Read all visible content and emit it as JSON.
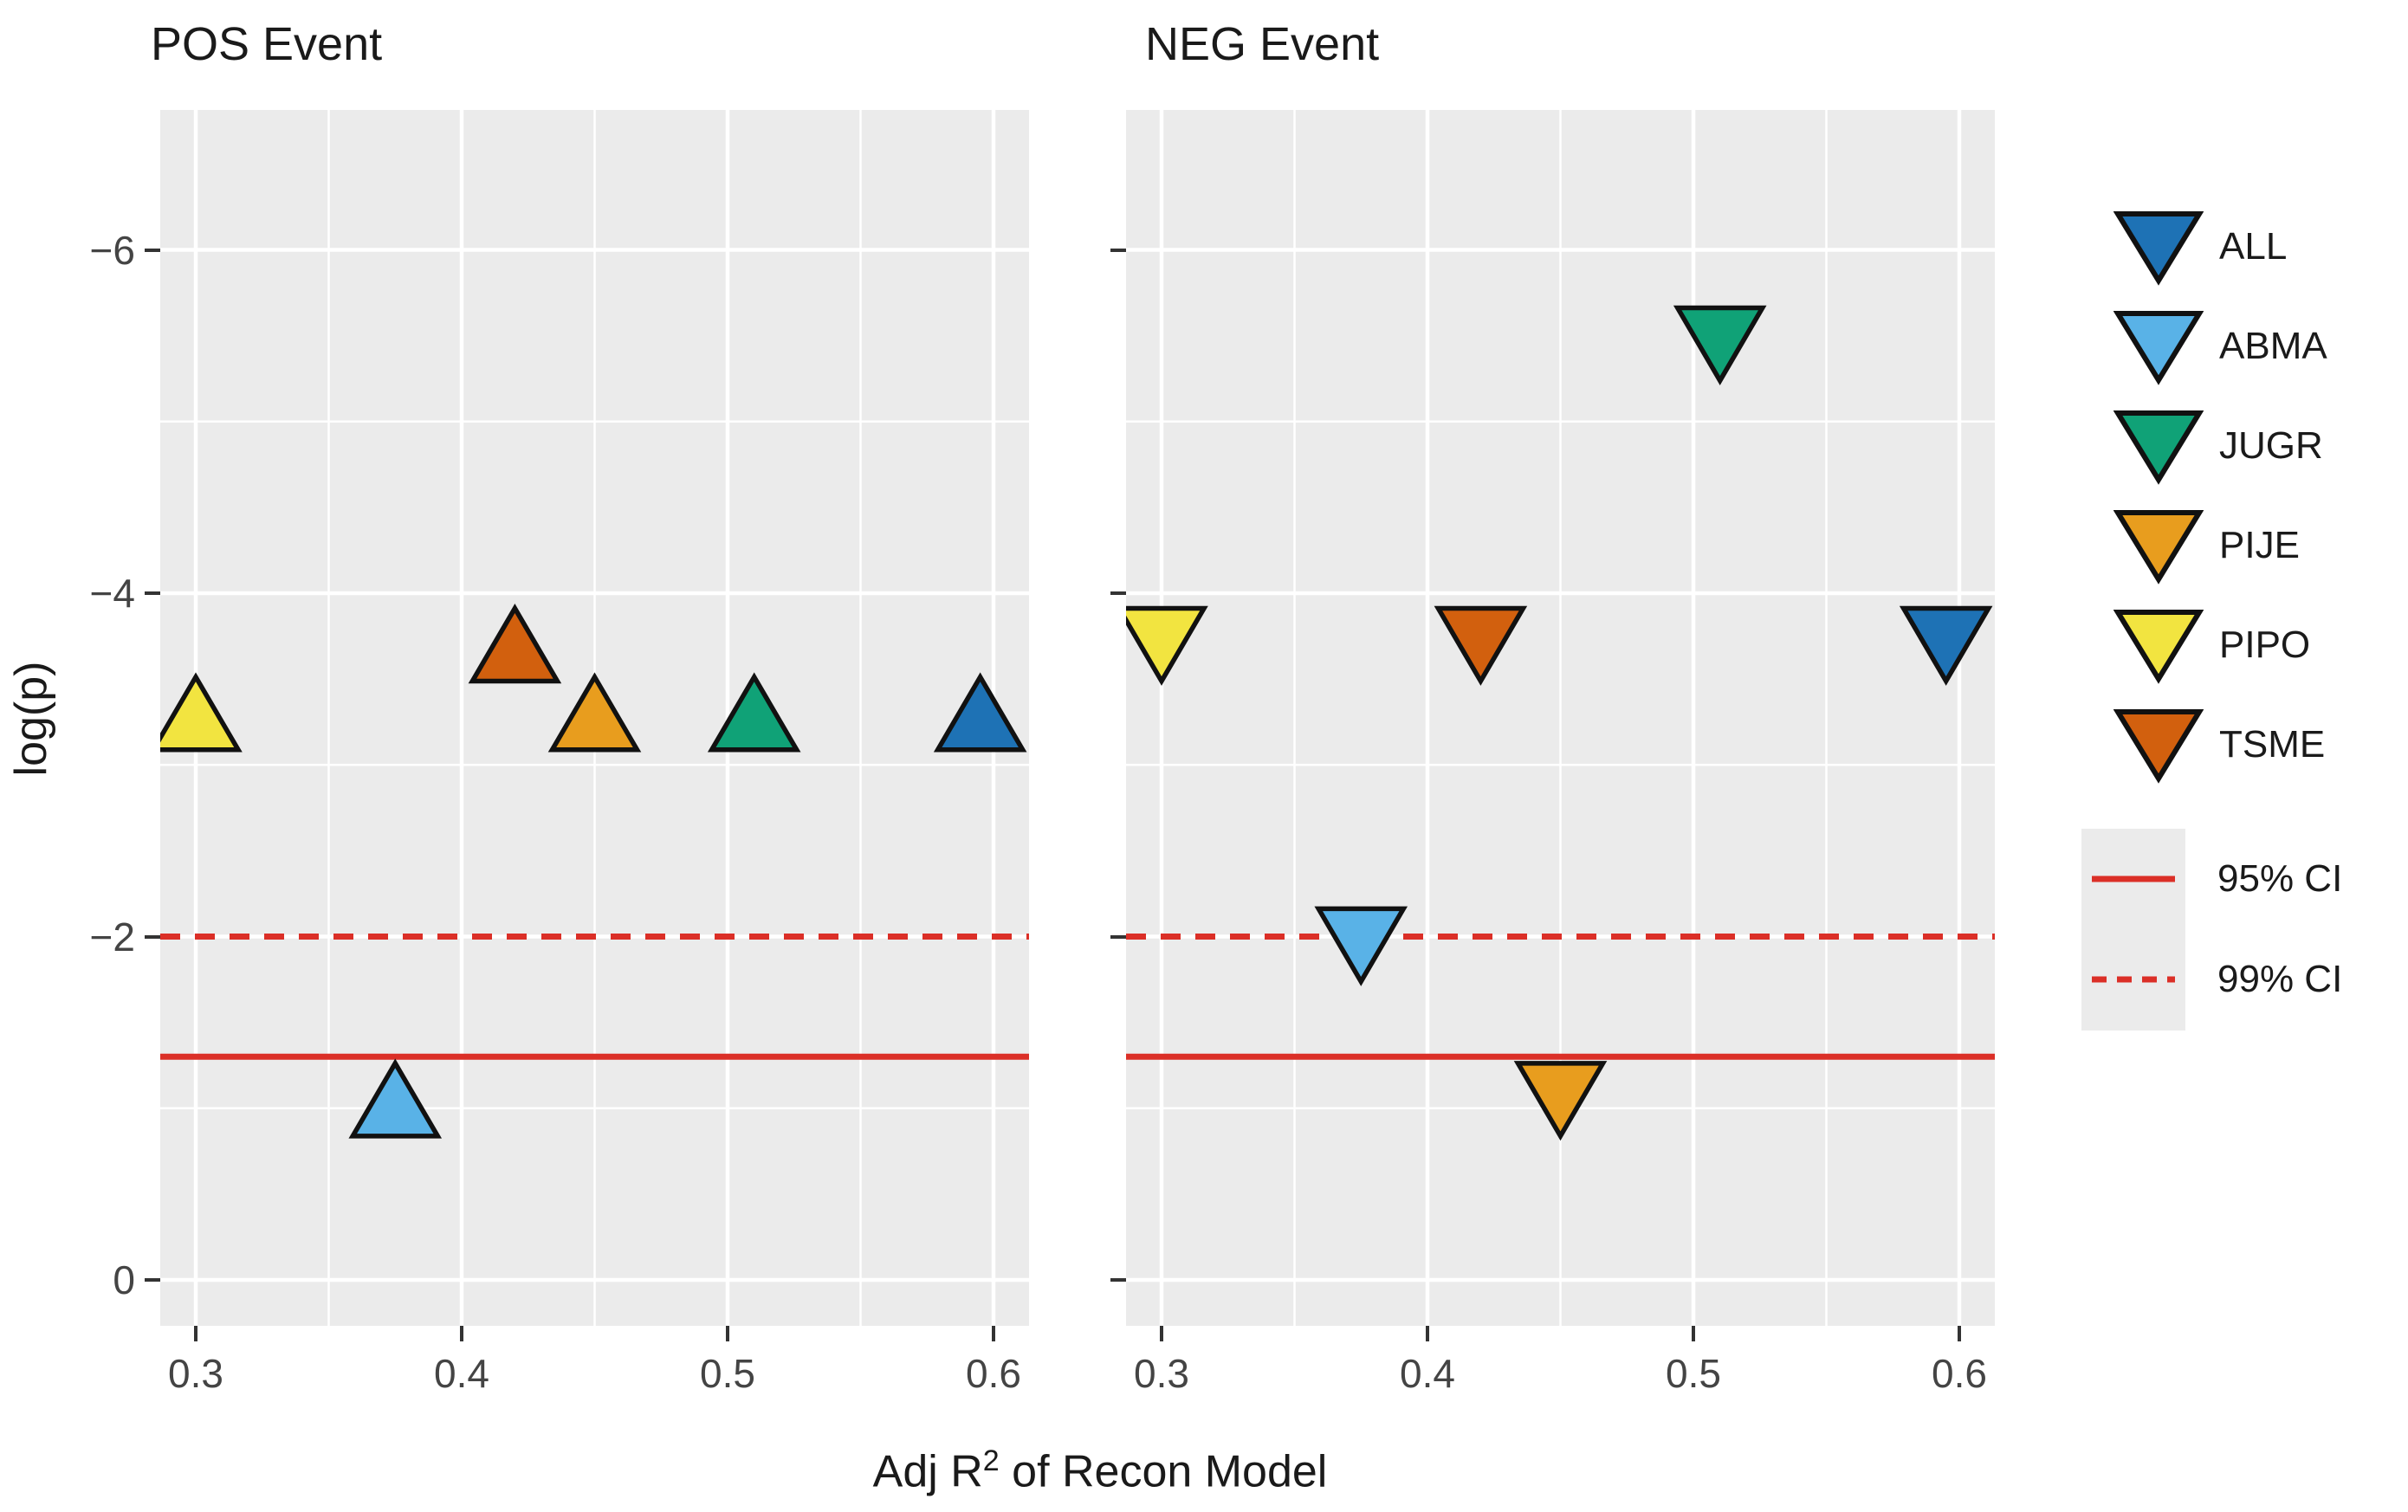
{
  "figure": {
    "panel_titles": {
      "pos": "POS Event",
      "neg": "NEG Event"
    },
    "ylabel": "log(p)",
    "xlabel": {
      "prefix": "Adj R",
      "sup": "2",
      "suffix": " of Recon Model",
      "full": "Adj R² of Recon Model"
    }
  },
  "axes": {
    "x_ticks": [
      {
        "value": 0.3,
        "label": "0.3"
      },
      {
        "value": 0.4,
        "label": "0.4"
      },
      {
        "value": 0.5,
        "label": "0.5"
      },
      {
        "value": 0.6,
        "label": "0.6"
      }
    ],
    "y_ticks": [
      {
        "value": 0,
        "label": "0"
      },
      {
        "value": -2,
        "label": "−2"
      },
      {
        "value": -4,
        "label": "−4"
      },
      {
        "value": -6,
        "label": "−6"
      }
    ],
    "x_minor": [
      0.35,
      0.45,
      0.55
    ],
    "y_minor": [
      -1,
      -3,
      -5
    ]
  },
  "colors": {
    "panel_background": "#EBEBEB",
    "gridline": "#FFFFFF",
    "marker_outline": "#111111",
    "ci_line": "#DB2F27",
    "text": "#1a1a1a",
    "tick_text": "#444444"
  },
  "legend": {
    "species": [
      {
        "code": "ALL",
        "color": "#1E72B5"
      },
      {
        "code": "ABMA",
        "color": "#59B2E7"
      },
      {
        "code": "JUGR",
        "color": "#10A277"
      },
      {
        "code": "PIJE",
        "color": "#E89D1E"
      },
      {
        "code": "PIPO",
        "color": "#F2E440"
      },
      {
        "code": "TSME",
        "color": "#D2600E"
      }
    ],
    "ci": [
      {
        "label": "95% CI",
        "style": "solid"
      },
      {
        "label": "99% CI",
        "style": "dashed"
      }
    ]
  },
  "chart_data": [
    {
      "type": "scatter",
      "panel": "POS Event",
      "marker": "triangle-up",
      "xlabel": "Adj R² of Recon Model",
      "ylabel": "log(p)",
      "x_range": [
        0.287,
        0.613
      ],
      "y_range": [
        0.3,
        -6.8
      ],
      "y_axis_inverted": true,
      "grid": true,
      "points": [
        {
          "species": "PIPO",
          "x": 0.3,
          "y": -3.3
        },
        {
          "species": "ABMA",
          "x": 0.375,
          "y": -1.05
        },
        {
          "species": "TSME",
          "x": 0.42,
          "y": -3.7
        },
        {
          "species": "PIJE",
          "x": 0.45,
          "y": -3.3
        },
        {
          "species": "JUGR",
          "x": 0.51,
          "y": -3.3
        },
        {
          "species": "ALL",
          "x": 0.595,
          "y": -3.3
        }
      ],
      "lines": [
        {
          "label": "95% CI",
          "y": -1.3,
          "style": "solid"
        },
        {
          "label": "99% CI",
          "y": -2.0,
          "style": "dashed"
        }
      ]
    },
    {
      "type": "scatter",
      "panel": "NEG Event",
      "marker": "triangle-down",
      "xlabel": "Adj R² of Recon Model",
      "ylabel": "log(p)",
      "x_range": [
        0.287,
        0.613
      ],
      "y_range": [
        0.3,
        -6.8
      ],
      "y_axis_inverted": true,
      "grid": true,
      "points": [
        {
          "species": "PIPO",
          "x": 0.3,
          "y": -3.7
        },
        {
          "species": "ABMA",
          "x": 0.375,
          "y": -1.95
        },
        {
          "species": "TSME",
          "x": 0.42,
          "y": -3.7
        },
        {
          "species": "PIJE",
          "x": 0.45,
          "y": -1.05
        },
        {
          "species": "JUGR",
          "x": 0.51,
          "y": -5.45
        },
        {
          "species": "ALL",
          "x": 0.595,
          "y": -3.7
        }
      ],
      "lines": [
        {
          "label": "95% CI",
          "y": -1.3,
          "style": "solid"
        },
        {
          "label": "99% CI",
          "y": -2.0,
          "style": "dashed"
        }
      ]
    }
  ]
}
